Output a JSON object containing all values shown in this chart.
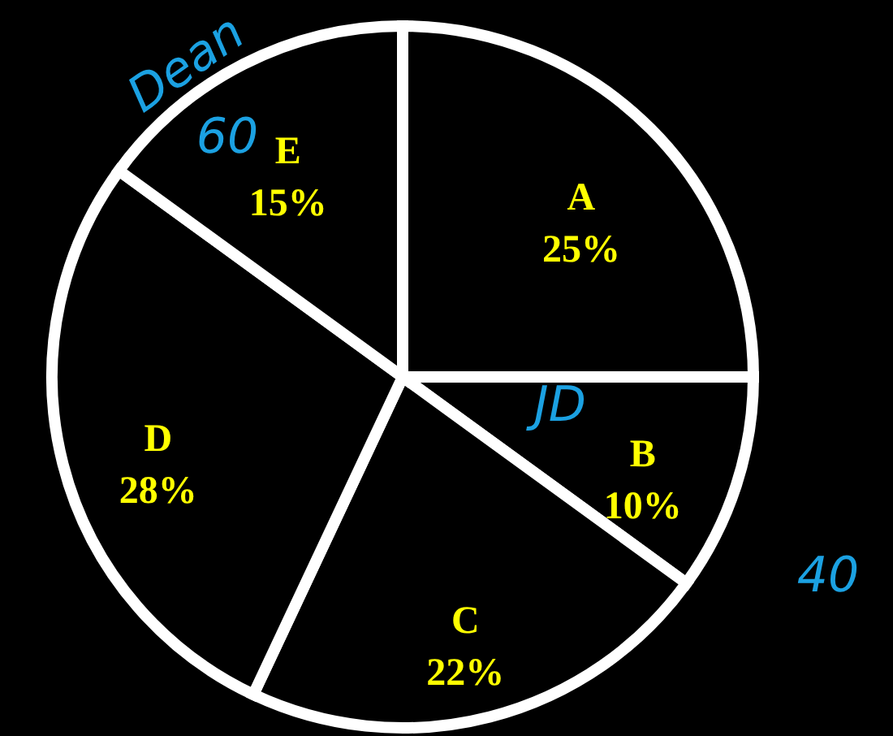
{
  "chart_data": {
    "type": "pie",
    "categories": [
      "A",
      "B",
      "C",
      "D",
      "E"
    ],
    "values": [
      25,
      10,
      22,
      28,
      15
    ],
    "value_labels": [
      "25%",
      "10%",
      "22%",
      "28%",
      "15%"
    ],
    "colors": [
      "#000000",
      "#000000",
      "#000000",
      "#000000",
      "#000000"
    ],
    "annotations": [
      "Dean",
      "60",
      "JD",
      "40"
    ]
  }
}
